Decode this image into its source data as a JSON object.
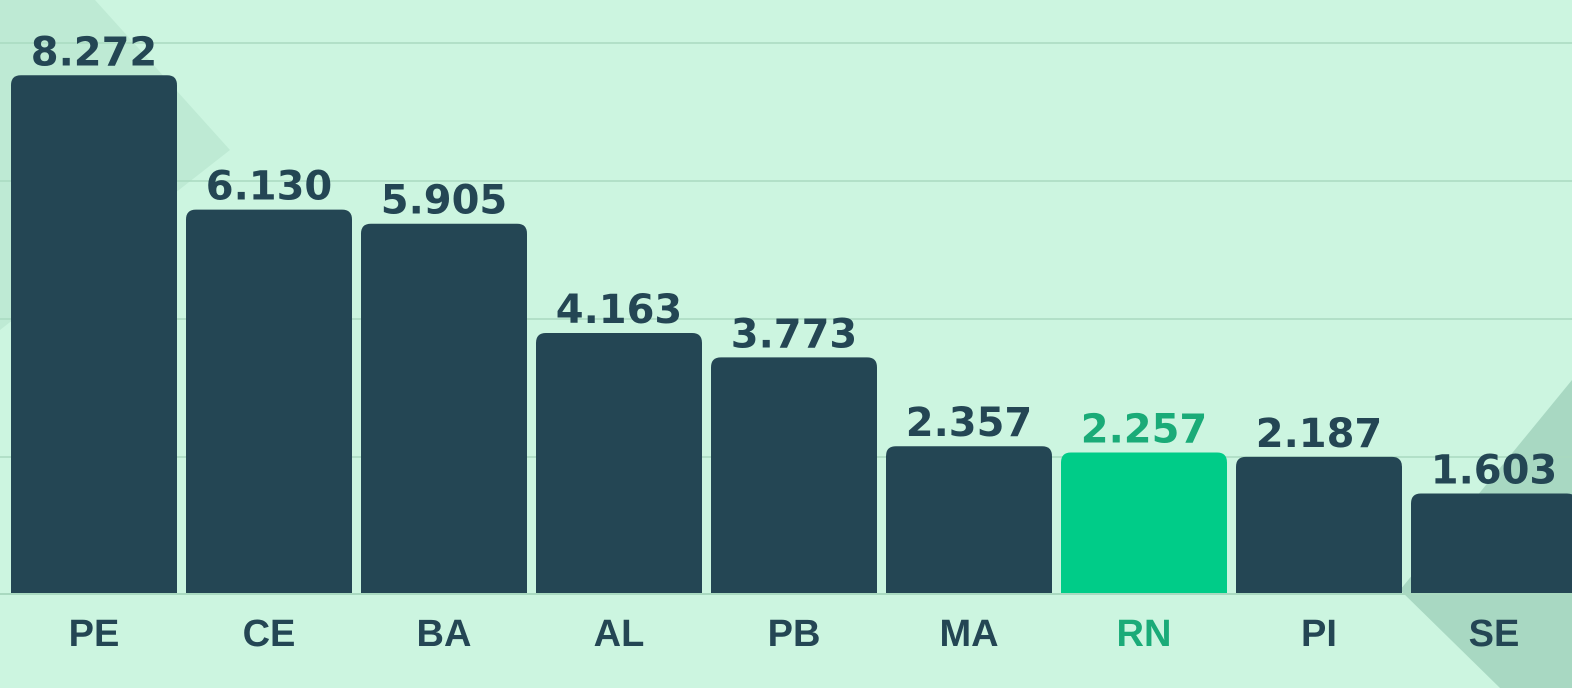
{
  "chart_data": {
    "type": "bar",
    "categories": [
      "PE",
      "CE",
      "BA",
      "AL",
      "PB",
      "MA",
      "RN",
      "PI",
      "SE"
    ],
    "values": [
      8272,
      6130,
      5905,
      4163,
      3773,
      2357,
      2257,
      2187,
      1603
    ],
    "value_labels": [
      "8.272",
      "6.130",
      "5.905",
      "4.163",
      "3.773",
      "2.357",
      "2.257",
      "2.187",
      "1.603"
    ],
    "colors": [
      "#244654",
      "#244654",
      "#244654",
      "#244654",
      "#244654",
      "#244654",
      "#00cc88",
      "#244654",
      "#244654"
    ],
    "label_colors": [
      "#244654",
      "#244654",
      "#244654",
      "#244654",
      "#244654",
      "#244654",
      "#1aab78",
      "#244654",
      "#244654"
    ],
    "ylim": [
      0,
      8500
    ]
  }
}
